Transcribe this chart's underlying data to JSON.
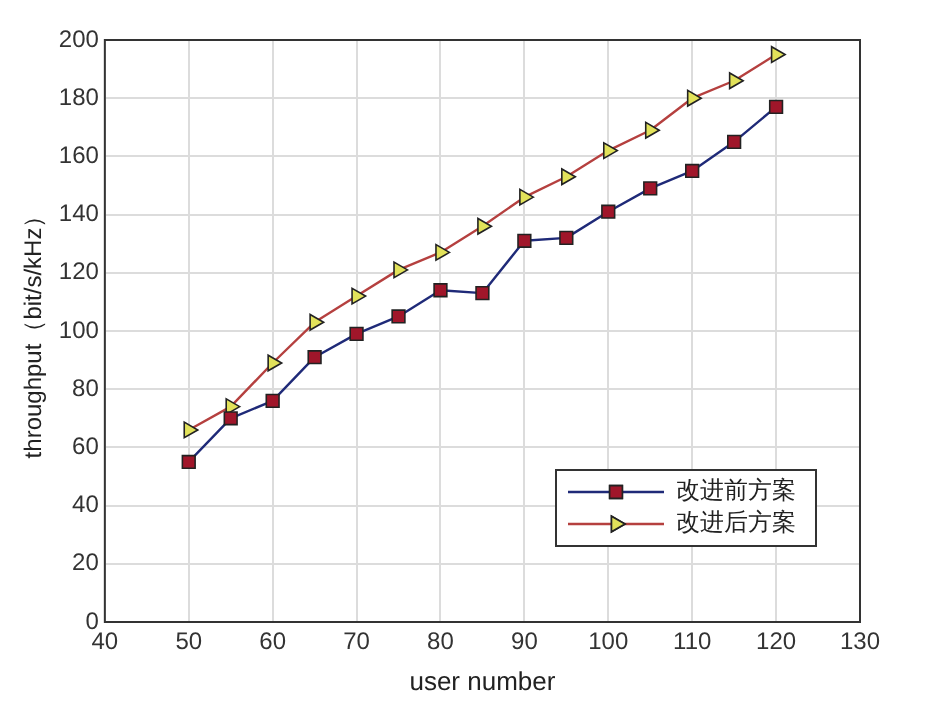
{
  "chart_data": {
    "type": "line",
    "xlabel": "user number",
    "ylabel": "throughput（bit/s/kHz）",
    "x": [
      50,
      55,
      60,
      65,
      70,
      75,
      80,
      85,
      90,
      95,
      100,
      105,
      110,
      115,
      120
    ],
    "series": [
      {
        "name": "改进前方案",
        "color": "#1f2a78",
        "marker": "square",
        "values": [
          55,
          70,
          76,
          91,
          99,
          105,
          114,
          113,
          131,
          132,
          141,
          149,
          155,
          165,
          177
        ]
      },
      {
        "name": "改进后方案",
        "color": "#b5403f",
        "marker": "triangle",
        "values": [
          66,
          74,
          89,
          103,
          112,
          121,
          127,
          136,
          146,
          153,
          162,
          169,
          180,
          186,
          195
        ]
      }
    ],
    "xlim": [
      40,
      130
    ],
    "xticks": [
      40,
      50,
      60,
      70,
      80,
      90,
      100,
      110,
      120,
      130
    ],
    "ylim": [
      0,
      200
    ],
    "yticks": [
      0,
      20,
      40,
      60,
      80,
      100,
      120,
      140,
      160,
      180,
      200
    ],
    "grid": true,
    "legend": "bottom right",
    "line_style": "solid"
  }
}
